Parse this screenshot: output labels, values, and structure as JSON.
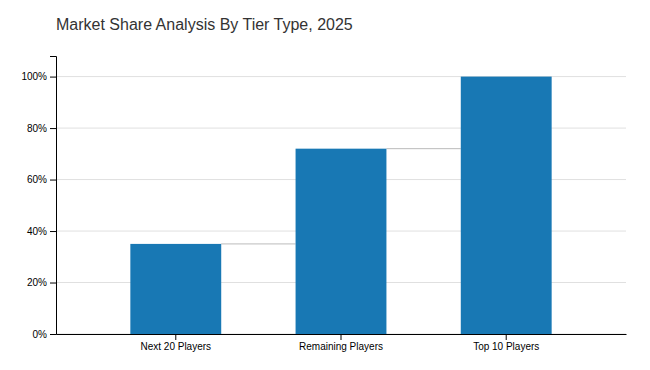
{
  "chart_data": {
    "type": "bar",
    "title": "Market Share Analysis By Tier Type, 2025",
    "categories": [
      "Next 20 Players",
      "Remaining Players",
      "Top 10 Players"
    ],
    "values": [
      35,
      72,
      100
    ],
    "color": "#1878B4",
    "ylim": [
      0,
      108
    ],
    "yticks": [
      {
        "value": 0,
        "label": "0%"
      },
      {
        "value": 20,
        "label": "20%"
      },
      {
        "value": 40,
        "label": "40%"
      },
      {
        "value": 60,
        "label": "60%"
      },
      {
        "value": 80,
        "label": "80%"
      },
      {
        "value": 100,
        "label": "100%"
      }
    ],
    "grid": true
  }
}
